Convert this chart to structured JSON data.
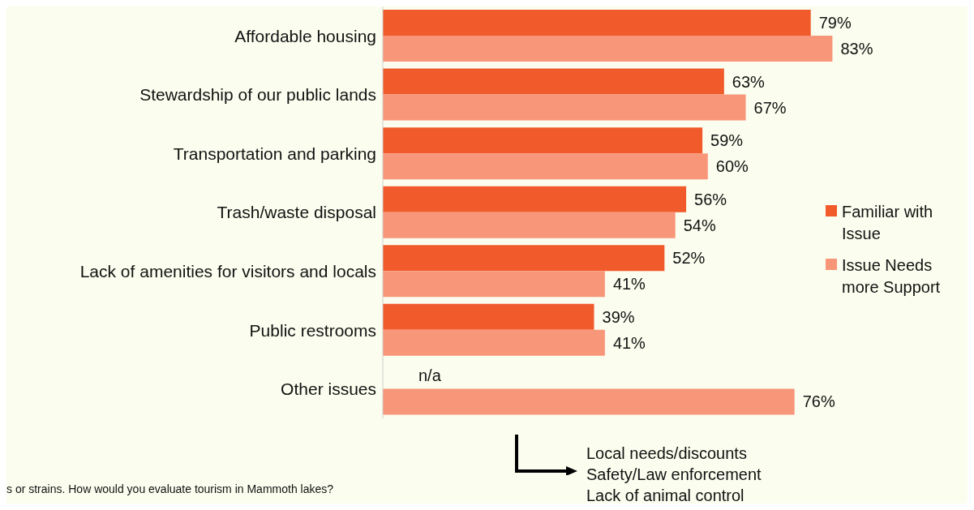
{
  "chart_data": {
    "type": "bar",
    "orientation": "horizontal",
    "tick_labels": "y",
    "categories": [
      "Affordable housing",
      "Stewardship of our public lands",
      "Transportation and parking",
      "Trash/waste disposal",
      "Lack of amenities for visitors and locals",
      "Public restrooms",
      "Other issues"
    ],
    "series": [
      {
        "name": "Familiar with Issue",
        "color": "#f15a2b",
        "values": [
          79,
          63,
          59,
          56,
          52,
          39,
          null
        ],
        "value_labels": [
          "79%",
          "63%",
          "59%",
          "56%",
          "52%",
          "39%",
          "n/a"
        ]
      },
      {
        "name": "Issue Needs more Support",
        "color": "#f8967a",
        "values": [
          83,
          67,
          60,
          54,
          41,
          41,
          76
        ],
        "value_labels": [
          "83%",
          "67%",
          "60%",
          "54%",
          "41%",
          "41%",
          "76%"
        ]
      }
    ],
    "legend": "right",
    "annotations": [
      "Local needs/discounts\nSafety/Law enforcement\nLack of animal control",
      "s or strains. How would you evaluate tourism in Mammoth lakes?"
    ]
  }
}
